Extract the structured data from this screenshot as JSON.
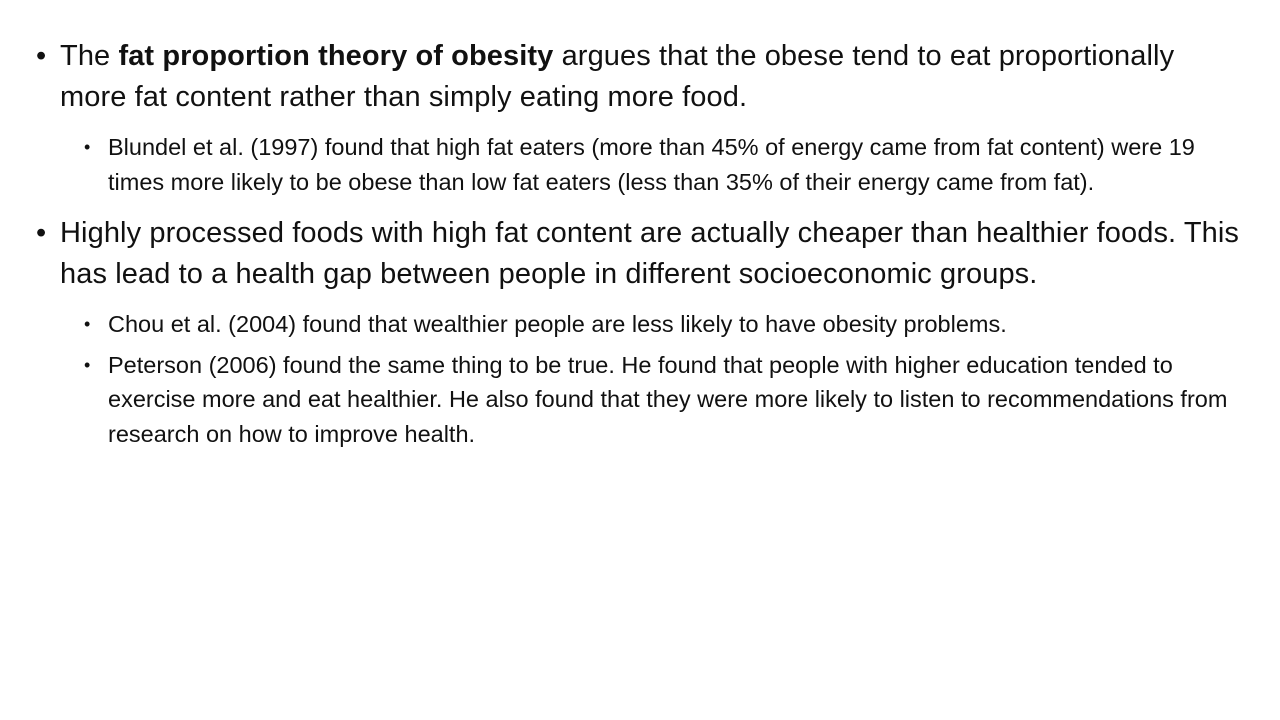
{
  "bullet_glyph": "•",
  "points": [
    {
      "text_before": "The ",
      "text_bold": "fat proportion theory of obesity",
      "text_after": " argues that the obese tend to eat proportionally more fat content rather than simply eating more food.",
      "subpoints": [
        "Blundel et al. (1997) found that high fat eaters (more than 45% of energy came from fat content) were 19 times more likely to be obese than low fat eaters (less than 35% of their energy came from fat)."
      ]
    },
    {
      "text": "Highly processed foods with high fat content are actually cheaper than healthier foods.  This has lead to a health gap between people in different socioeconomic groups.",
      "subpoints": [
        "Chou et al. (2004) found that wealthier people are less likely to have obesity problems.",
        "Peterson (2006) found the same thing to be true.  He found that people with higher education tended to exercise more and eat healthier.  He also found that they were more likely to listen to recommendations from research on how to improve health."
      ]
    }
  ]
}
